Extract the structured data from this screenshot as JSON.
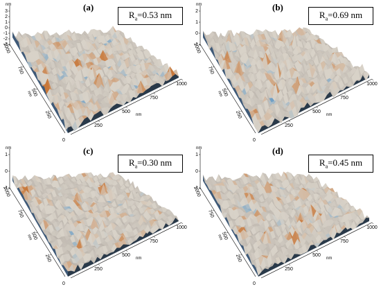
{
  "panels": [
    {
      "label": "(a)",
      "ra_value": "=0.53 nm",
      "ra_symbol": "R",
      "ra_sub": "a",
      "z_ticks": [
        "3",
        "2",
        "1",
        "0",
        "-1",
        "-2",
        "-3"
      ],
      "z_unit": "nm",
      "x_ticks": [
        "250",
        "500",
        "750",
        "1000"
      ],
      "x_unit": "nm",
      "y_ticks": [
        "0",
        "250",
        "500",
        "750",
        "1000"
      ],
      "y_unit": "nm",
      "origin": "0"
    },
    {
      "label": "(b)",
      "ra_value": "=0.69 nm",
      "ra_symbol": "R",
      "ra_sub": "a",
      "z_ticks": [
        "2",
        "1",
        "0",
        "-1"
      ],
      "z_unit": "nm",
      "x_ticks": [
        "250",
        "500",
        "750",
        "1000"
      ],
      "x_unit": "nm",
      "y_ticks": [
        "0",
        "250",
        "500",
        "750",
        "1000"
      ],
      "y_unit": "nm",
      "origin": "0"
    },
    {
      "label": "(c)",
      "ra_value": "=0.30 nm",
      "ra_symbol": "R",
      "ra_sub": "a",
      "z_ticks": [
        "1",
        "0",
        "-1"
      ],
      "z_unit": "nm",
      "x_ticks": [
        "250",
        "500",
        "750",
        "1000"
      ],
      "x_unit": "nm",
      "y_ticks": [
        "0",
        "250",
        "500",
        "750",
        "1000"
      ],
      "y_unit": "nm",
      "origin": "0"
    },
    {
      "label": "(d)",
      "ra_value": "=0.45 nm",
      "ra_symbol": "R",
      "ra_sub": "a",
      "z_ticks": [
        "1",
        "0",
        "-1"
      ],
      "z_unit": "nm",
      "x_ticks": [
        "250",
        "500",
        "750",
        "1000"
      ],
      "x_unit": "nm",
      "y_ticks": [
        "0",
        "250",
        "500",
        "750",
        "1000"
      ],
      "y_unit": "nm",
      "origin": "0"
    }
  ],
  "colors": {
    "peak": "#c8783a",
    "valley": "#4d8fc4",
    "mid": "#d8d2c8",
    "dark": "#2a3a4a"
  }
}
